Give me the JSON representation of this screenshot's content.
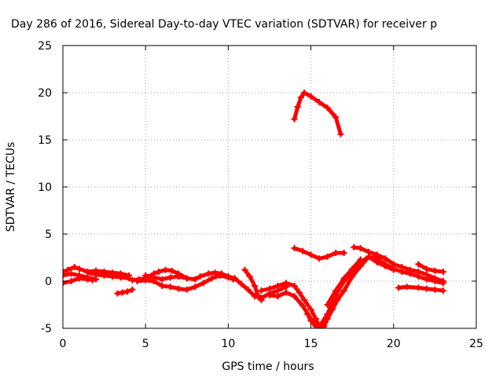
{
  "chart_data": {
    "type": "scatter",
    "title": "Day 286 of 2016, Sidereal Day-to-day VTEC variation (SDTVAR) for receiver p",
    "xlabel": "GPS time / hours",
    "ylabel": "SDTVAR / TECUs",
    "xlim": [
      0,
      25
    ],
    "ylim": [
      -5,
      25
    ],
    "xticks": [
      "0",
      "5",
      "10",
      "15",
      "20",
      "25"
    ],
    "yticks": [
      "-5",
      "0",
      "5",
      "10",
      "15",
      "20",
      "25"
    ],
    "grid": true,
    "marker": "plus",
    "color": "#ff0000",
    "series": [
      {
        "points": [
          [
            0,
            1.0
          ],
          [
            0.3,
            1.2
          ],
          [
            0.7,
            1.5
          ],
          [
            1.0,
            1.3
          ],
          [
            1.5,
            1.0
          ],
          [
            2.0,
            1.1
          ],
          [
            2.5,
            1.0
          ],
          [
            3.0,
            0.9
          ],
          [
            3.5,
            0.8
          ],
          [
            4.0,
            0.6
          ]
        ]
      },
      {
        "points": [
          [
            0,
            0.6
          ],
          [
            0.5,
            0.8
          ],
          [
            1.0,
            0.6
          ],
          [
            1.5,
            0.4
          ],
          [
            2.0,
            0.2
          ]
        ]
      },
      {
        "points": [
          [
            0,
            -0.2
          ],
          [
            0.5,
            0.0
          ],
          [
            1.0,
            0.3
          ],
          [
            1.5,
            0.2
          ],
          [
            1.8,
            0.1
          ]
        ]
      },
      {
        "points": [
          [
            1.5,
            0.9
          ],
          [
            2.0,
            0.7
          ],
          [
            2.5,
            0.6
          ],
          [
            3.0,
            0.5
          ],
          [
            3.5,
            0.4
          ],
          [
            4.0,
            0.3
          ]
        ]
      },
      {
        "points": [
          [
            3.3,
            -1.3
          ],
          [
            3.6,
            -1.2
          ],
          [
            3.9,
            -1.1
          ],
          [
            4.2,
            -0.9
          ]
        ]
      },
      {
        "points": [
          [
            4.2,
            0.1
          ],
          [
            4.6,
            0.2
          ],
          [
            5.0,
            0.3
          ],
          [
            5.5,
            0.8
          ],
          [
            5.8,
            1.0
          ],
          [
            6.2,
            1.2
          ],
          [
            6.6,
            1.1
          ],
          [
            7.0,
            0.8
          ],
          [
            7.5,
            0.3
          ],
          [
            8.0,
            0.2
          ],
          [
            8.3,
            0.5
          ],
          [
            8.8,
            0.8
          ],
          [
            9.2,
            0.9
          ],
          [
            9.6,
            0.8
          ],
          [
            10.0,
            0.5
          ],
          [
            10.4,
            0.3
          ],
          [
            10.8,
            -0.3
          ],
          [
            11.2,
            -0.9
          ],
          [
            11.6,
            -1.6
          ],
          [
            12.0,
            -1.8
          ],
          [
            12.5,
            -1.3
          ],
          [
            13.0,
            -1.0
          ],
          [
            13.5,
            -0.6
          ]
        ]
      },
      {
        "points": [
          [
            4.5,
            0.0
          ],
          [
            5.0,
            0.1
          ],
          [
            5.5,
            0.0
          ],
          [
            6.0,
            -0.5
          ],
          [
            6.5,
            -0.6
          ],
          [
            7.0,
            -0.8
          ],
          [
            7.5,
            -0.9
          ],
          [
            8.0,
            -0.6
          ],
          [
            8.5,
            -0.2
          ],
          [
            9.0,
            0.3
          ],
          [
            9.5,
            0.6
          ],
          [
            10.0,
            0.4
          ],
          [
            10.3,
            0.2
          ]
        ]
      },
      {
        "points": [
          [
            5.0,
            0.6
          ],
          [
            5.5,
            0.4
          ],
          [
            6.0,
            0.2
          ],
          [
            6.5,
            0.4
          ],
          [
            7.0,
            0.5
          ],
          [
            7.5,
            0.3
          ]
        ]
      },
      {
        "points": [
          [
            11.0,
            1.2
          ],
          [
            11.3,
            0.5
          ],
          [
            11.6,
            -0.5
          ],
          [
            11.8,
            -1.5
          ],
          [
            12.0,
            -2.0
          ]
        ]
      },
      {
        "points": [
          [
            12.0,
            -1.0
          ],
          [
            12.5,
            -0.8
          ],
          [
            13.0,
            -0.5
          ],
          [
            13.5,
            -0.2
          ],
          [
            14.0,
            -0.5
          ],
          [
            14.3,
            -1.2
          ],
          [
            14.6,
            -2.0
          ],
          [
            15.0,
            -3.0
          ],
          [
            15.3,
            -4.0
          ],
          [
            15.5,
            -4.8
          ]
        ]
      },
      {
        "points": [
          [
            12.5,
            -1.5
          ],
          [
            13.0,
            -1.6
          ],
          [
            13.5,
            -1.2
          ],
          [
            14.0,
            -1.6
          ],
          [
            14.5,
            -2.6
          ],
          [
            15.0,
            -4.0
          ],
          [
            15.5,
            -5.0
          ],
          [
            15.8,
            -4.8
          ],
          [
            16.0,
            -4.0
          ],
          [
            16.3,
            -3.0
          ],
          [
            16.6,
            -2.0
          ],
          [
            17.0,
            -1.0
          ],
          [
            17.5,
            0.5
          ],
          [
            18.0,
            1.6
          ],
          [
            18.5,
            2.6
          ],
          [
            19.0,
            2.4
          ],
          [
            19.5,
            1.8
          ],
          [
            20.0,
            1.3
          ],
          [
            20.5,
            1.0
          ],
          [
            21.0,
            0.8
          ],
          [
            21.5,
            0.5
          ],
          [
            22.0,
            0.2
          ],
          [
            22.5,
            0.0
          ],
          [
            23.0,
            -0.2
          ]
        ]
      },
      {
        "points": [
          [
            14.8,
            -3.5
          ],
          [
            15.0,
            -4.2
          ],
          [
            15.3,
            -4.8
          ],
          [
            15.6,
            -4.6
          ],
          [
            16.0,
            -3.5
          ],
          [
            16.5,
            -1.5
          ],
          [
            17.0,
            0.0
          ],
          [
            17.5,
            1.0
          ],
          [
            18.0,
            2.0
          ],
          [
            18.5,
            2.6
          ],
          [
            19.0,
            2.0
          ],
          [
            19.5,
            1.6
          ],
          [
            20.0,
            1.2
          ]
        ]
      },
      {
        "points": [
          [
            16.0,
            -2.5
          ],
          [
            16.5,
            -1.0
          ],
          [
            17.0,
            0.3
          ],
          [
            17.5,
            1.3
          ],
          [
            18.0,
            2.3
          ]
        ]
      },
      {
        "points": [
          [
            17.6,
            3.6
          ],
          [
            18.0,
            3.5
          ],
          [
            18.5,
            3.1
          ],
          [
            19.0,
            2.8
          ],
          [
            19.5,
            2.4
          ],
          [
            20.0,
            1.8
          ],
          [
            20.5,
            1.5
          ],
          [
            21.0,
            1.2
          ],
          [
            21.5,
            1.0
          ],
          [
            22.0,
            0.7
          ],
          [
            22.5,
            0.3
          ],
          [
            23.0,
            0.0
          ]
        ]
      },
      {
        "points": [
          [
            14.0,
            3.5
          ],
          [
            14.5,
            3.2
          ],
          [
            15.0,
            2.8
          ],
          [
            15.5,
            2.4
          ],
          [
            16.0,
            2.6
          ],
          [
            16.5,
            3.0
          ],
          [
            17.0,
            3.0
          ]
        ]
      },
      {
        "points": [
          [
            20.3,
            -0.7
          ],
          [
            20.8,
            -0.6
          ],
          [
            21.5,
            -0.7
          ],
          [
            22.0,
            -0.8
          ],
          [
            22.5,
            -0.9
          ],
          [
            23.0,
            -1.0
          ]
        ]
      },
      {
        "points": [
          [
            21.5,
            1.8
          ],
          [
            22.0,
            1.3
          ],
          [
            22.5,
            1.1
          ],
          [
            23.0,
            1.0
          ]
        ]
      },
      {
        "points": [
          [
            14.0,
            17.2
          ],
          [
            14.2,
            18.5
          ],
          [
            14.4,
            19.5
          ],
          [
            14.6,
            20.0
          ],
          [
            15.0,
            19.6
          ],
          [
            15.5,
            19.0
          ],
          [
            16.0,
            18.4
          ],
          [
            16.5,
            17.4
          ],
          [
            16.8,
            15.6
          ]
        ]
      }
    ]
  }
}
